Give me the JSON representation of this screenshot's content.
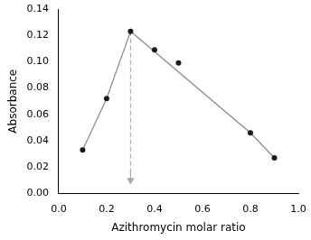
{
  "chart_data": {
    "type": "scatter",
    "xlabel": "Azithromycin molar ratio",
    "ylabel": "Absorbance",
    "xlim": [
      0.0,
      1.0
    ],
    "ylim": [
      0.0,
      0.14
    ],
    "xticks": [
      {
        "value": 0.0,
        "label": "0.0"
      },
      {
        "value": 0.2,
        "label": "0.2"
      },
      {
        "value": 0.4,
        "label": "0.4"
      },
      {
        "value": 0.6,
        "label": "0.6"
      },
      {
        "value": 0.8,
        "label": "0.8"
      },
      {
        "value": 1.0,
        "label": "1.0"
      }
    ],
    "yticks": [
      {
        "value": 0.0,
        "label": "0.00"
      },
      {
        "value": 0.02,
        "label": "0.02"
      },
      {
        "value": 0.04,
        "label": "0.04"
      },
      {
        "value": 0.06,
        "label": "0.06"
      },
      {
        "value": 0.08,
        "label": "0.08"
      },
      {
        "value": 0.1,
        "label": "0.10"
      },
      {
        "value": 0.12,
        "label": "0.12"
      },
      {
        "value": 0.14,
        "label": "0.14"
      }
    ],
    "grid": false,
    "series": [
      {
        "type": "line",
        "color": "#888888",
        "x": [
          0.1,
          0.2,
          0.3
        ],
        "values": [
          0.033,
          0.072,
          0.123
        ]
      },
      {
        "type": "line",
        "color": "#888888",
        "x": [
          0.3,
          0.8,
          0.9
        ],
        "values": [
          0.123,
          0.046,
          0.027
        ]
      },
      {
        "type": "line",
        "color": "#aaaaaa",
        "line_style": "dashed",
        "x": [
          0.3,
          0.3
        ],
        "values": [
          0.123,
          0.015
        ]
      },
      {
        "type": "line",
        "color": "#aaaaaa",
        "marker": "arrow",
        "x": [
          0.3,
          0.3
        ],
        "values": [
          0.017,
          0.01
        ]
      },
      {
        "type": "scatter",
        "color": "#1a1a1a",
        "x": [
          0.1,
          0.2,
          0.3,
          0.4,
          0.5,
          0.8,
          0.9
        ],
        "values": [
          0.033,
          0.072,
          0.123,
          0.109,
          0.099,
          0.046,
          0.027
        ]
      }
    ]
  }
}
